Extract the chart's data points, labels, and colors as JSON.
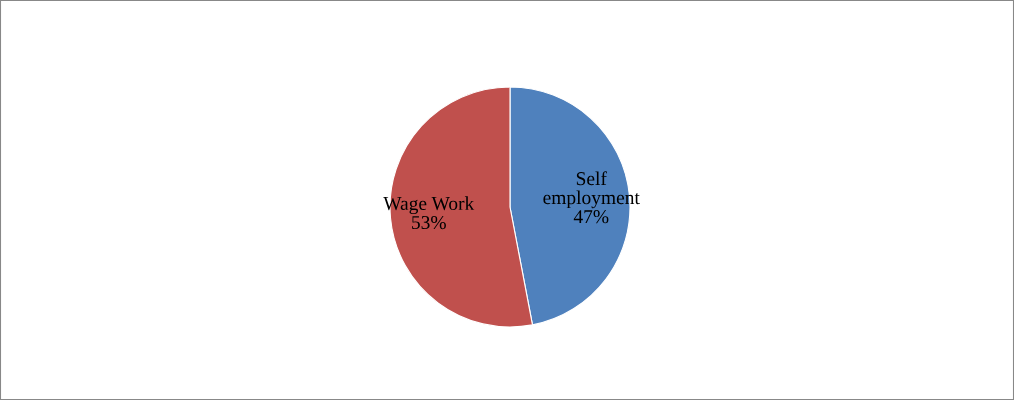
{
  "chart_data": {
    "type": "pie",
    "categories": [
      "Self employment",
      "Wage Work"
    ],
    "values": [
      47,
      53
    ],
    "colors": [
      "#4f81bd",
      "#c0504d"
    ],
    "value_labels": [
      "47%",
      "53%"
    ],
    "legend": false
  }
}
